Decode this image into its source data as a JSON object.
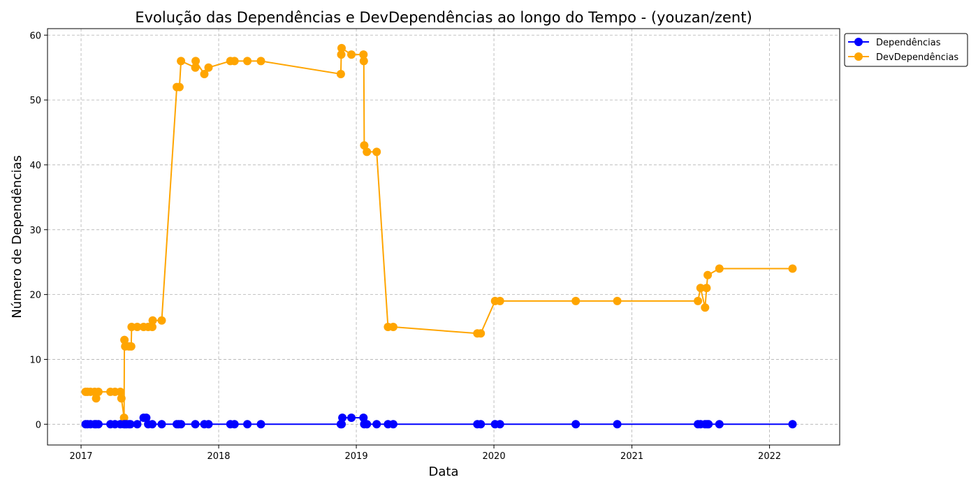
{
  "chart_data": {
    "type": "line",
    "title": "Evolução das Dependências e DevDependências ao longo do Tempo - (youzan/zent)",
    "xlabel": "Data",
    "ylabel": "Número de Dependências",
    "xlim": [
      "2016-10-04",
      "2022-07-06"
    ],
    "ylim": [
      -3.2,
      61.0
    ],
    "x_ticks": [
      {
        "date": "2017-01-01",
        "label": "2017"
      },
      {
        "date": "2018-01-01",
        "label": "2018"
      },
      {
        "date": "2019-01-01",
        "label": "2019"
      },
      {
        "date": "2020-01-01",
        "label": "2020"
      },
      {
        "date": "2021-01-01",
        "label": "2021"
      },
      {
        "date": "2022-01-01",
        "label": "2022"
      }
    ],
    "y_ticks": [
      {
        "value": 0,
        "label": "0"
      },
      {
        "value": 10,
        "label": "10"
      },
      {
        "value": 20,
        "label": "20"
      },
      {
        "value": 30,
        "label": "30"
      },
      {
        "value": 40,
        "label": "40"
      },
      {
        "value": 50,
        "label": "50"
      },
      {
        "value": 60,
        "label": "60"
      }
    ],
    "grid": true,
    "legend_position": "outside-top-right",
    "series": [
      {
        "name": "Dependências",
        "color": "#0000ff",
        "marker": "circle",
        "points": [
          [
            "2017-01-13",
            0
          ],
          [
            "2017-01-18",
            0
          ],
          [
            "2017-01-26",
            0
          ],
          [
            "2017-02-06",
            0
          ],
          [
            "2017-02-10",
            0
          ],
          [
            "2017-02-16",
            0
          ],
          [
            "2017-03-20",
            0
          ],
          [
            "2017-04-01",
            0
          ],
          [
            "2017-04-15",
            0
          ],
          [
            "2017-04-25",
            0
          ],
          [
            "2017-04-28",
            0
          ],
          [
            "2017-05-02",
            0
          ],
          [
            "2017-05-08",
            0
          ],
          [
            "2017-05-12",
            0
          ],
          [
            "2017-05-30",
            0
          ],
          [
            "2017-06-16",
            1
          ],
          [
            "2017-06-23",
            1
          ],
          [
            "2017-06-28",
            0
          ],
          [
            "2017-07-09",
            0
          ],
          [
            "2017-08-03",
            0
          ],
          [
            "2017-09-12",
            0
          ],
          [
            "2017-09-17",
            0
          ],
          [
            "2017-09-23",
            0
          ],
          [
            "2017-10-31",
            0
          ],
          [
            "2017-11-24",
            0
          ],
          [
            "2017-12-05",
            0
          ],
          [
            "2018-02-01",
            0
          ],
          [
            "2018-02-12",
            0
          ],
          [
            "2018-03-18",
            0
          ],
          [
            "2018-04-23",
            0
          ],
          [
            "2018-11-21",
            0
          ],
          [
            "2018-11-23",
            0
          ],
          [
            "2018-11-25",
            1
          ],
          [
            "2018-12-19",
            1
          ],
          [
            "2019-01-20",
            1
          ],
          [
            "2019-01-22",
            0
          ],
          [
            "2019-01-29",
            0
          ],
          [
            "2019-02-24",
            0
          ],
          [
            "2019-03-26",
            0
          ],
          [
            "2019-04-09",
            0
          ],
          [
            "2019-11-18",
            0
          ],
          [
            "2019-11-27",
            0
          ],
          [
            "2020-01-04",
            0
          ],
          [
            "2020-01-17",
            0
          ],
          [
            "2020-08-05",
            0
          ],
          [
            "2020-11-23",
            0
          ],
          [
            "2021-06-25",
            0
          ],
          [
            "2021-07-02",
            0
          ],
          [
            "2021-07-14",
            0
          ],
          [
            "2021-07-19",
            0
          ],
          [
            "2021-07-23",
            0
          ],
          [
            "2021-08-21",
            0
          ],
          [
            "2022-03-03",
            0
          ]
        ]
      },
      {
        "name": "DevDependências",
        "color": "#ffa500",
        "marker": "circle",
        "points": [
          [
            "2017-01-13",
            5
          ],
          [
            "2017-01-18",
            5
          ],
          [
            "2017-01-26",
            5
          ],
          [
            "2017-02-06",
            5
          ],
          [
            "2017-02-10",
            4
          ],
          [
            "2017-02-16",
            5
          ],
          [
            "2017-03-20",
            5
          ],
          [
            "2017-04-01",
            5
          ],
          [
            "2017-04-15",
            5
          ],
          [
            "2017-04-18",
            4
          ],
          [
            "2017-04-25",
            1
          ],
          [
            "2017-04-26",
            13
          ],
          [
            "2017-04-28",
            12
          ],
          [
            "2017-05-08",
            12
          ],
          [
            "2017-05-14",
            12
          ],
          [
            "2017-05-15",
            15
          ],
          [
            "2017-05-30",
            15
          ],
          [
            "2017-06-16",
            15
          ],
          [
            "2017-06-28",
            15
          ],
          [
            "2017-07-09",
            15
          ],
          [
            "2017-07-10",
            16
          ],
          [
            "2017-08-03",
            16
          ],
          [
            "2017-09-12",
            52
          ],
          [
            "2017-09-19",
            52
          ],
          [
            "2017-09-23",
            56
          ],
          [
            "2017-10-31",
            55
          ],
          [
            "2017-11-01",
            56
          ],
          [
            "2017-11-24",
            54
          ],
          [
            "2017-12-05",
            55
          ],
          [
            "2018-02-01",
            56
          ],
          [
            "2018-02-12",
            56
          ],
          [
            "2018-03-18",
            56
          ],
          [
            "2018-04-23",
            56
          ],
          [
            "2018-11-21",
            54
          ],
          [
            "2018-11-22",
            57
          ],
          [
            "2018-11-23",
            58
          ],
          [
            "2018-12-19",
            57
          ],
          [
            "2019-01-20",
            57
          ],
          [
            "2019-01-21",
            56
          ],
          [
            "2019-01-22",
            43
          ],
          [
            "2019-01-29",
            42
          ],
          [
            "2019-02-24",
            42
          ],
          [
            "2019-03-26",
            15
          ],
          [
            "2019-04-09",
            15
          ],
          [
            "2019-11-18",
            14
          ],
          [
            "2019-11-27",
            14
          ],
          [
            "2020-01-04",
            19
          ],
          [
            "2020-01-17",
            19
          ],
          [
            "2020-08-05",
            19
          ],
          [
            "2020-11-23",
            19
          ],
          [
            "2021-06-25",
            19
          ],
          [
            "2021-07-02",
            21
          ],
          [
            "2021-07-14",
            18
          ],
          [
            "2021-07-18",
            21
          ],
          [
            "2021-07-21",
            23
          ],
          [
            "2021-08-21",
            24
          ],
          [
            "2022-03-03",
            24
          ]
        ]
      }
    ]
  }
}
